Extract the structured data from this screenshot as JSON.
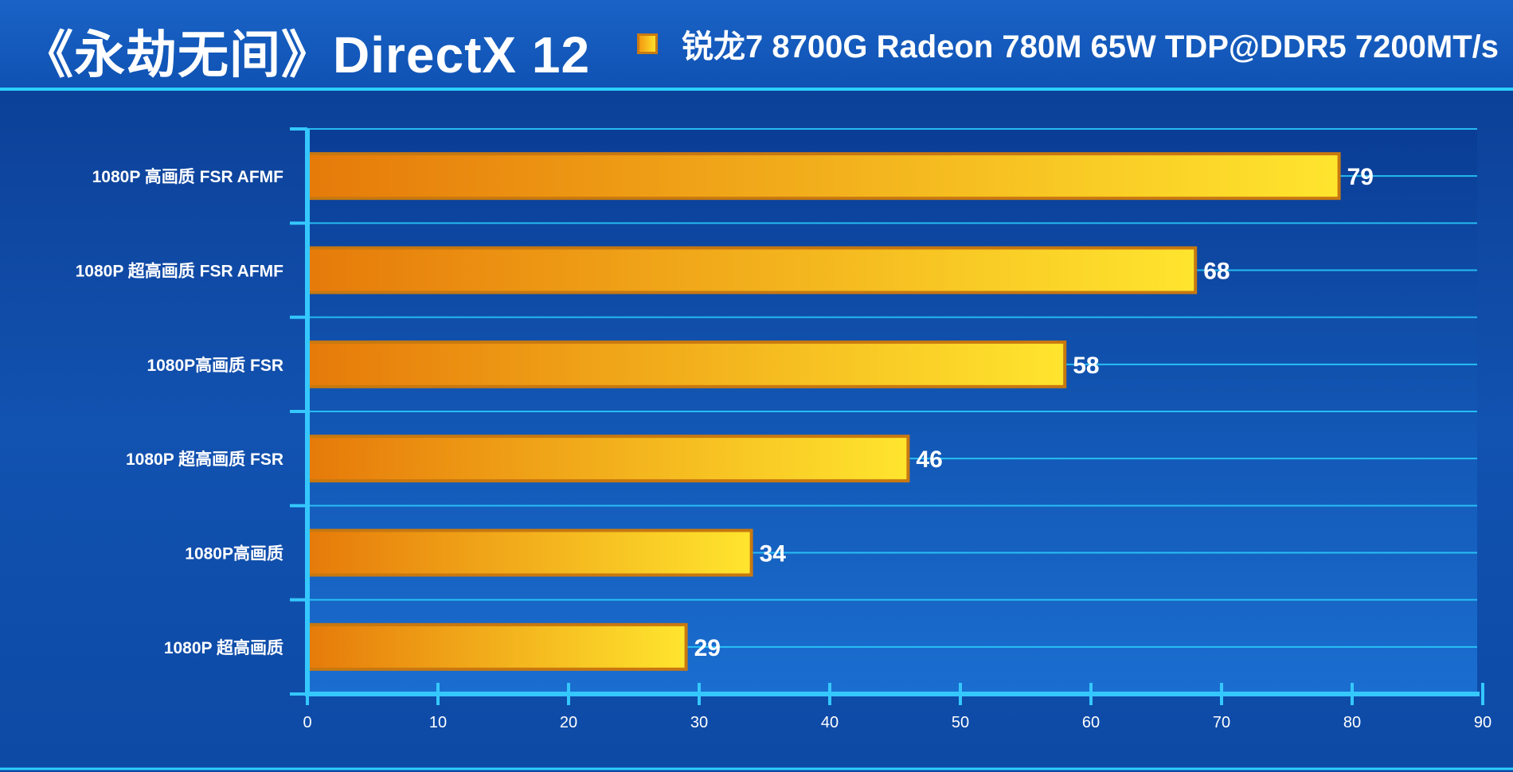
{
  "header": {
    "title": "《永劫无间》DirectX 12"
  },
  "colors": {
    "background": "#0b3c92",
    "panel": "#1a6ed0",
    "grid": "#2bd0ff",
    "axis": "#35c8ff",
    "bar_start": "#e67a0a",
    "bar_end": "#ffe52e",
    "bar_border": "#c8780f"
  },
  "chart_data": {
    "type": "bar",
    "orientation": "horizontal",
    "title": "《永劫无间》DirectX 12",
    "categories": [
      "1080P 高画质 FSR AFMF",
      "1080P 超高画质 FSR AFMF",
      "1080P高画质 FSR",
      "1080P 超高画质 FSR",
      "1080P高画质",
      "1080P 超高画质"
    ],
    "series": [
      {
        "name": "锐龙7 8700G Radeon 780M 65W TDP@DDR5 7200MT/s",
        "values": [
          79,
          68,
          58,
          46,
          34,
          29
        ]
      }
    ],
    "xlim": [
      0,
      90
    ],
    "xticks": [
      0,
      10,
      20,
      30,
      40,
      50,
      60,
      70,
      80,
      90
    ],
    "data_labels": true,
    "grid": true,
    "legend_position": "top-right"
  }
}
